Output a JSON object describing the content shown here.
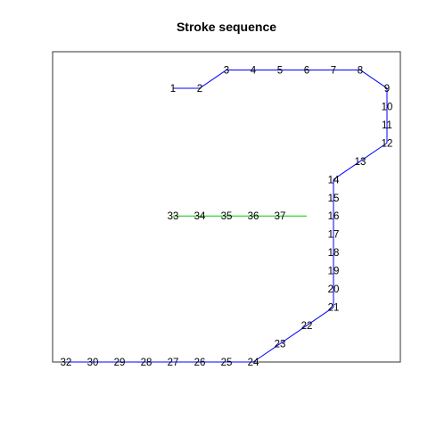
{
  "chart_data": {
    "type": "line",
    "title": "Stroke sequence",
    "xlabel": "",
    "ylabel": "",
    "xlim": [
      0.5,
      13.5
    ],
    "ylim": [
      0,
      17
    ],
    "axes_visible": false,
    "grid": false,
    "series": [
      {
        "color": "#0000ff",
        "points": [
          {
            "label": "1",
            "x": 5,
            "y": 15
          },
          {
            "label": "2",
            "x": 6,
            "y": 15
          },
          {
            "label": "3",
            "x": 7,
            "y": 16
          },
          {
            "label": "4",
            "x": 8,
            "y": 16
          },
          {
            "label": "5",
            "x": 9,
            "y": 16
          },
          {
            "label": "6",
            "x": 10,
            "y": 16
          },
          {
            "label": "7",
            "x": 11,
            "y": 16
          },
          {
            "label": "8",
            "x": 12,
            "y": 16
          },
          {
            "label": "9",
            "x": 13,
            "y": 15
          },
          {
            "label": "10",
            "x": 13,
            "y": 14
          },
          {
            "label": "11",
            "x": 13,
            "y": 13
          },
          {
            "label": "12",
            "x": 13,
            "y": 12
          },
          {
            "label": "13",
            "x": 12,
            "y": 11
          },
          {
            "label": "14",
            "x": 11,
            "y": 10
          },
          {
            "label": "15",
            "x": 11,
            "y": 9
          },
          {
            "label": "16",
            "x": 11,
            "y": 8
          },
          {
            "label": "17",
            "x": 11,
            "y": 7
          },
          {
            "label": "18",
            "x": 11,
            "y": 6
          },
          {
            "label": "19",
            "x": 11,
            "y": 5
          },
          {
            "label": "20",
            "x": 11,
            "y": 4
          },
          {
            "label": "21",
            "x": 11,
            "y": 3
          },
          {
            "label": "22",
            "x": 10,
            "y": 2
          },
          {
            "label": "23",
            "x": 9,
            "y": 1
          },
          {
            "label": "24",
            "x": 8,
            "y": 0
          },
          {
            "label": "25",
            "x": 7,
            "y": 0
          },
          {
            "label": "26",
            "x": 6,
            "y": 0
          },
          {
            "label": "27",
            "x": 5,
            "y": 0
          },
          {
            "label": "28",
            "x": 4,
            "y": 0
          },
          {
            "label": "29",
            "x": 3,
            "y": 0
          },
          {
            "label": "30",
            "x": 2,
            "y": 0
          },
          {
            "label": "32",
            "x": 1,
            "y": 0
          }
        ]
      },
      {
        "color": "#00cc00",
        "points": [
          {
            "label": "33",
            "x": 5,
            "y": 8
          },
          {
            "label": "34",
            "x": 6,
            "y": 8
          },
          {
            "label": "35",
            "x": 7,
            "y": 8
          },
          {
            "label": "36",
            "x": 8,
            "y": 8
          },
          {
            "label": "37",
            "x": 9,
            "y": 8
          },
          {
            "label": "",
            "x": 10,
            "y": 8
          }
        ]
      }
    ]
  }
}
